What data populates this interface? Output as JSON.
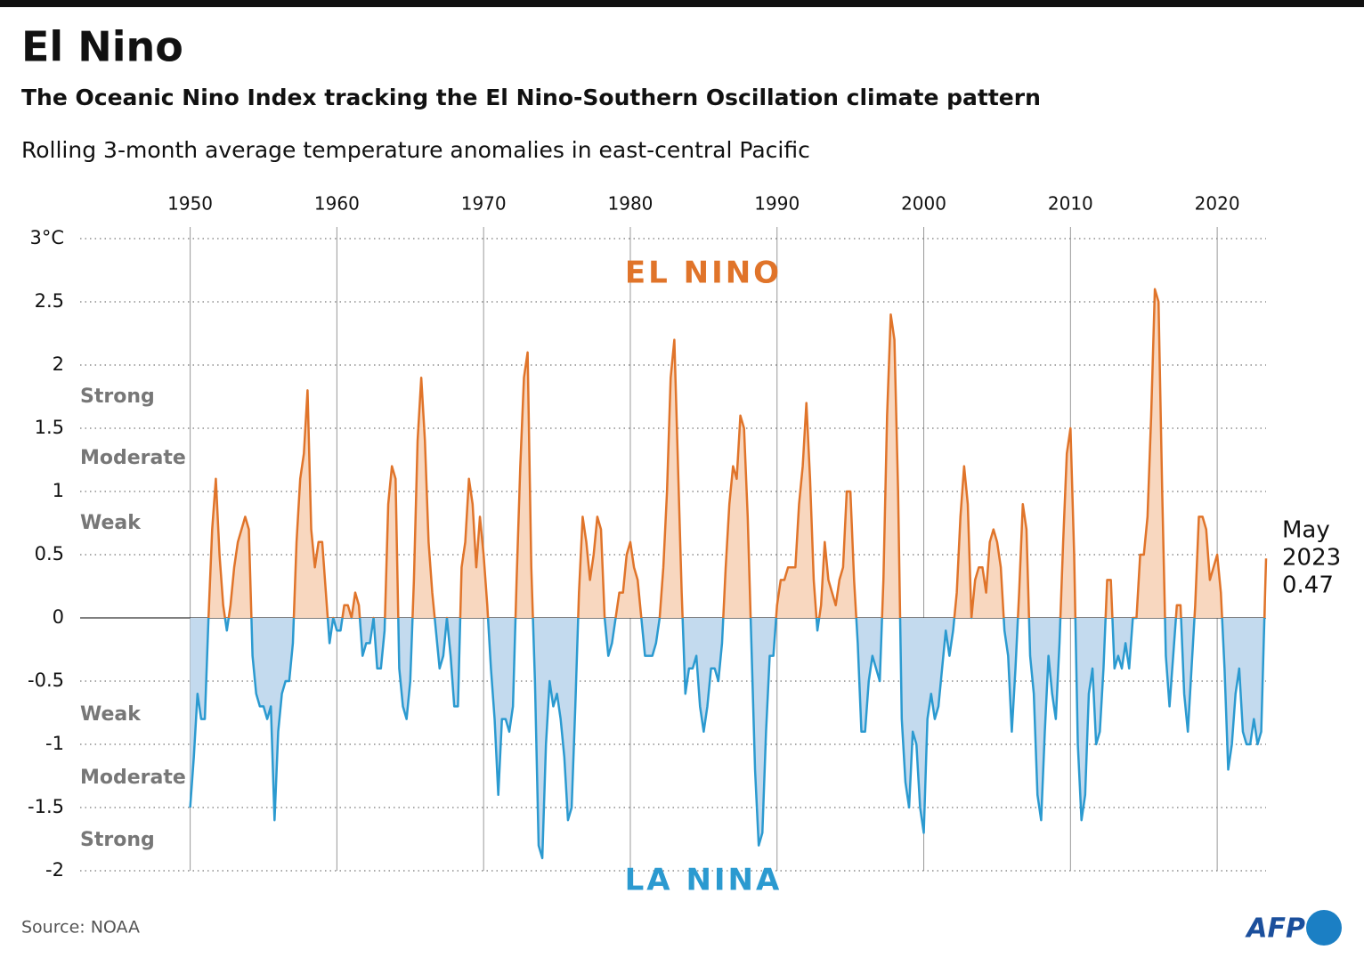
{
  "chart_data": {
    "type": "line",
    "title": "El Nino",
    "subtitle": "The Oceanic Nino Index tracking the El Nino-Southern Oscillation climate pattern",
    "description": "Rolling 3-month average temperature anomalies in east-central Pacific",
    "source": "Source: NOAA",
    "logo": "AFP",
    "el_nino_label": "EL NINO",
    "la_nina_label": "LA NINA",
    "el_nino_strength_labels": [
      "Strong",
      "Moderate",
      "Weak"
    ],
    "la_nina_strength_labels": [
      "Weak",
      "Moderate",
      "Strong"
    ],
    "last_point_label": [
      "May",
      "2023"
    ],
    "colors": {
      "above": "#e0742a",
      "below": "#2b9ad0",
      "fill_above": "#f8d7bf",
      "fill_below": "#c3daee"
    },
    "xlim": [
      1942.5,
      2023.33
    ],
    "xticks": [
      1950,
      1960,
      1970,
      1980,
      1990,
      2000,
      2010,
      2020
    ],
    "ylim": [
      -2,
      3
    ],
    "yticks": [
      {
        "value": 3,
        "label": "3°C"
      },
      2.5,
      2,
      1.5,
      1,
      0.5,
      0,
      -0.5,
      -1,
      -1.5,
      -2
    ],
    "grid": true,
    "x": [
      1950,
      1950.25,
      1950.5,
      1950.75,
      1951,
      1951.25,
      1951.5,
      1951.75,
      1952,
      1952.25,
      1952.5,
      1952.75,
      1953,
      1953.25,
      1953.5,
      1953.75,
      1954,
      1954.25,
      1954.5,
      1954.75,
      1955,
      1955.25,
      1955.5,
      1955.75,
      1956,
      1956.25,
      1956.5,
      1956.75,
      1957,
      1957.25,
      1957.5,
      1957.75,
      1958,
      1958.25,
      1958.5,
      1958.75,
      1959,
      1959.25,
      1959.5,
      1959.75,
      1960,
      1960.25,
      1960.5,
      1960.75,
      1961,
      1961.25,
      1961.5,
      1961.75,
      1962,
      1962.25,
      1962.5,
      1962.75,
      1963,
      1963.25,
      1963.5,
      1963.75,
      1964,
      1964.25,
      1964.5,
      1964.75,
      1965,
      1965.25,
      1965.5,
      1965.75,
      1966,
      1966.25,
      1966.5,
      1966.75,
      1967,
      1967.25,
      1967.5,
      1967.75,
      1968,
      1968.25,
      1968.5,
      1968.75,
      1969,
      1969.25,
      1969.5,
      1969.75,
      1970,
      1970.25,
      1970.5,
      1970.75,
      1971,
      1971.25,
      1971.5,
      1971.75,
      1972,
      1972.25,
      1972.5,
      1972.75,
      1973,
      1973.25,
      1973.5,
      1973.75,
      1974,
      1974.25,
      1974.5,
      1974.75,
      1975,
      1975.25,
      1975.5,
      1975.75,
      1976,
      1976.25,
      1976.5,
      1976.75,
      1977,
      1977.25,
      1977.5,
      1977.75,
      1978,
      1978.25,
      1978.5,
      1978.75,
      1979,
      1979.25,
      1979.5,
      1979.75,
      1980,
      1980.25,
      1980.5,
      1980.75,
      1981,
      1981.25,
      1981.5,
      1981.75,
      1982,
      1982.25,
      1982.5,
      1982.75,
      1983,
      1983.25,
      1983.5,
      1983.75,
      1984,
      1984.25,
      1984.5,
      1984.75,
      1985,
      1985.25,
      1985.5,
      1985.75,
      1986,
      1986.25,
      1986.5,
      1986.75,
      1987,
      1987.25,
      1987.5,
      1987.75,
      1988,
      1988.25,
      1988.5,
      1988.75,
      1989,
      1989.25,
      1989.5,
      1989.75,
      1990,
      1990.25,
      1990.5,
      1990.75,
      1991,
      1991.25,
      1991.5,
      1991.75,
      1992,
      1992.25,
      1992.5,
      1992.75,
      1993,
      1993.25,
      1993.5,
      1993.75,
      1994,
      1994.25,
      1994.5,
      1994.75,
      1995,
      1995.25,
      1995.5,
      1995.75,
      1996,
      1996.25,
      1996.5,
      1996.75,
      1997,
      1997.25,
      1997.5,
      1997.75,
      1998,
      1998.25,
      1998.5,
      1998.75,
      1999,
      1999.25,
      1999.5,
      1999.75,
      2000,
      2000.25,
      2000.5,
      2000.75,
      2001,
      2001.25,
      2001.5,
      2001.75,
      2002,
      2002.25,
      2002.5,
      2002.75,
      2003,
      2003.25,
      2003.5,
      2003.75,
      2004,
      2004.25,
      2004.5,
      2004.75,
      2005,
      2005.25,
      2005.5,
      2005.75,
      2006,
      2006.25,
      2006.5,
      2006.75,
      2007,
      2007.25,
      2007.5,
      2007.75,
      2008,
      2008.25,
      2008.5,
      2008.75,
      2009,
      2009.25,
      2009.5,
      2009.75,
      2010,
      2010.25,
      2010.5,
      2010.75,
      2011,
      2011.25,
      2011.5,
      2011.75,
      2012,
      2012.25,
      2012.5,
      2012.75,
      2013,
      2013.25,
      2013.5,
      2013.75,
      2014,
      2014.25,
      2014.5,
      2014.75,
      2015,
      2015.25,
      2015.5,
      2015.75,
      2016,
      2016.25,
      2016.5,
      2016.75,
      2017,
      2017.25,
      2017.5,
      2017.75,
      2018,
      2018.25,
      2018.5,
      2018.75,
      2019,
      2019.25,
      2019.5,
      2019.75,
      2020,
      2020.25,
      2020.5,
      2020.75,
      2021,
      2021.25,
      2021.5,
      2021.75,
      2022,
      2022.25,
      2022.5,
      2022.75,
      2023,
      2023.33
    ],
    "series": [
      {
        "values": [
          -1.5,
          -1.1,
          -0.6,
          -0.8,
          -0.8,
          0.0,
          0.7,
          1.1,
          0.5,
          0.1,
          -0.1,
          0.1,
          0.4,
          0.6,
          0.7,
          0.8,
          0.7,
          -0.3,
          -0.6,
          -0.7,
          -0.7,
          -0.8,
          -0.7,
          -1.6,
          -0.9,
          -0.6,
          -0.5,
          -0.5,
          -0.2,
          0.6,
          1.1,
          1.3,
          1.8,
          0.7,
          0.4,
          0.6,
          0.6,
          0.2,
          -0.2,
          0.0,
          -0.1,
          -0.1,
          0.1,
          0.1,
          0.0,
          0.2,
          0.1,
          -0.3,
          -0.2,
          -0.2,
          0.0,
          -0.4,
          -0.4,
          -0.1,
          0.9,
          1.2,
          1.1,
          -0.4,
          -0.7,
          -0.8,
          -0.5,
          0.3,
          1.4,
          1.9,
          1.4,
          0.6,
          0.2,
          -0.1,
          -0.4,
          -0.3,
          0.0,
          -0.3,
          -0.7,
          -0.7,
          0.4,
          0.6,
          1.1,
          0.9,
          0.4,
          0.8,
          0.5,
          0.1,
          -0.4,
          -0.8,
          -1.4,
          -0.8,
          -0.8,
          -0.9,
          -0.7,
          0.3,
          1.2,
          1.9,
          2.1,
          0.4,
          -0.5,
          -1.8,
          -1.9,
          -1.0,
          -0.5,
          -0.7,
          -0.6,
          -0.8,
          -1.1,
          -1.6,
          -1.5,
          -0.7,
          0.2,
          0.8,
          0.6,
          0.3,
          0.5,
          0.8,
          0.7,
          0.0,
          -0.3,
          -0.2,
          0.0,
          0.2,
          0.2,
          0.5,
          0.6,
          0.4,
          0.3,
          0.0,
          -0.3,
          -0.3,
          -0.3,
          -0.2,
          0.0,
          0.4,
          1.0,
          1.9,
          2.2,
          1.2,
          0.2,
          -0.6,
          -0.4,
          -0.4,
          -0.3,
          -0.7,
          -0.9,
          -0.7,
          -0.4,
          -0.4,
          -0.5,
          -0.2,
          0.4,
          0.9,
          1.2,
          1.1,
          1.6,
          1.5,
          0.8,
          -0.2,
          -1.2,
          -1.8,
          -1.7,
          -0.9,
          -0.3,
          -0.3,
          0.1,
          0.3,
          0.3,
          0.4,
          0.4,
          0.4,
          0.9,
          1.2,
          1.7,
          1.1,
          0.3,
          -0.1,
          0.1,
          0.6,
          0.3,
          0.2,
          0.1,
          0.3,
          0.4,
          1.0,
          1.0,
          0.3,
          -0.2,
          -0.9,
          -0.9,
          -0.5,
          -0.3,
          -0.4,
          -0.5,
          0.3,
          1.6,
          2.4,
          2.2,
          1.0,
          -0.8,
          -1.3,
          -1.5,
          -0.9,
          -1.0,
          -1.5,
          -1.7,
          -0.8,
          -0.6,
          -0.8,
          -0.7,
          -0.4,
          -0.1,
          -0.3,
          -0.1,
          0.2,
          0.8,
          1.2,
          0.9,
          0.0,
          0.3,
          0.4,
          0.4,
          0.2,
          0.6,
          0.7,
          0.6,
          0.4,
          -0.1,
          -0.3,
          -0.9,
          -0.4,
          0.2,
          0.9,
          0.7,
          -0.3,
          -0.6,
          -1.4,
          -1.6,
          -0.9,
          -0.3,
          -0.6,
          -0.8,
          -0.2,
          0.6,
          1.3,
          1.5,
          0.5,
          -1.0,
          -1.6,
          -1.4,
          -0.6,
          -0.4,
          -1.0,
          -0.9,
          -0.4,
          0.3,
          0.3,
          -0.4,
          -0.3,
          -0.4,
          -0.2,
          -0.4,
          0.0,
          0.0,
          0.5,
          0.5,
          0.8,
          1.6,
          2.6,
          2.5,
          1.0,
          -0.3,
          -0.7,
          -0.3,
          0.1,
          0.1,
          -0.6,
          -0.9,
          -0.4,
          0.1,
          0.8,
          0.8,
          0.7,
          0.3,
          0.4,
          0.5,
          0.2,
          -0.4,
          -1.2,
          -1.0,
          -0.6,
          -0.4,
          -0.9,
          -1.0,
          -1.0,
          -0.8,
          -1.0,
          -0.9,
          0.47
        ]
      }
    ]
  }
}
